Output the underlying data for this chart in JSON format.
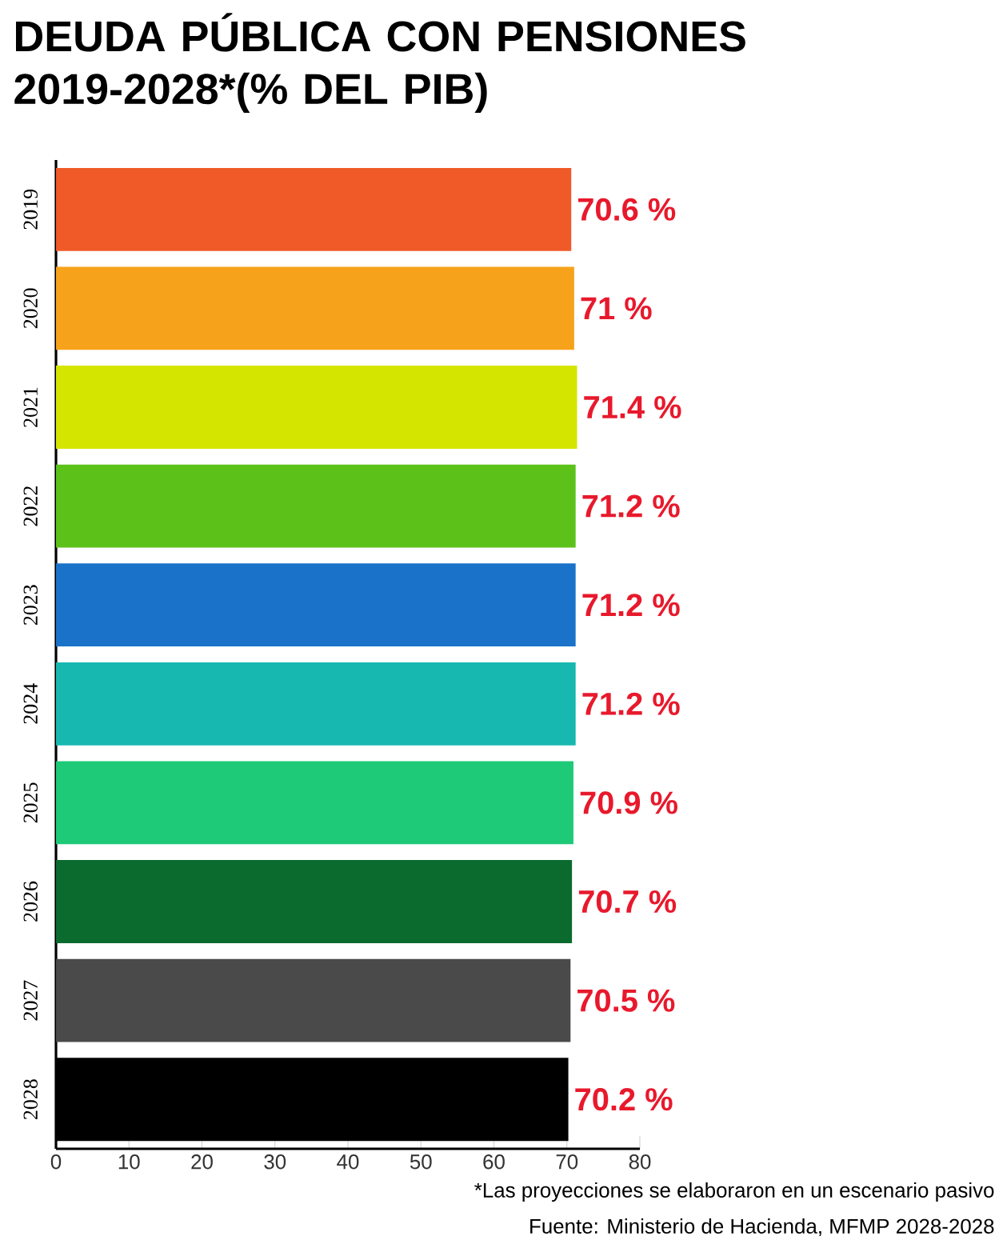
{
  "chart_data": {
    "type": "bar",
    "orientation": "horizontal",
    "title": "DEUDA PÚBLICA CON PENSIONES 2019-2028*(% DEL PIB)",
    "categories": [
      "2019",
      "2020",
      "2021",
      "2022",
      "2023",
      "2024",
      "2025",
      "2026",
      "2027",
      "2028"
    ],
    "values": [
      70.6,
      71,
      71.4,
      71.2,
      71.2,
      71.2,
      70.9,
      70.7,
      70.5,
      70.2
    ],
    "colors": [
      "#f05a28",
      "#f7a21b",
      "#d4e600",
      "#5cc21a",
      "#1a73c9",
      "#17b8b0",
      "#1ec978",
      "#0b6b2e",
      "#4a4a4a",
      "#000000"
    ],
    "value_labels": [
      "70.6 %",
      "71 %",
      "71.4 %",
      "71.2 %",
      "71.2 %",
      "71.2 %",
      "70.9 %",
      "70.7 %",
      "70.5 %",
      "70.2 %"
    ],
    "xlim": [
      0,
      80
    ],
    "xticks": [
      0,
      10,
      20,
      30,
      40,
      50,
      60,
      70,
      80
    ],
    "annotations": [
      "*Las proyecciones se elaboraron en un escenario pasivo",
      "Fuente: Ministerio de Hacienda, MFMP 2028-2028"
    ]
  }
}
